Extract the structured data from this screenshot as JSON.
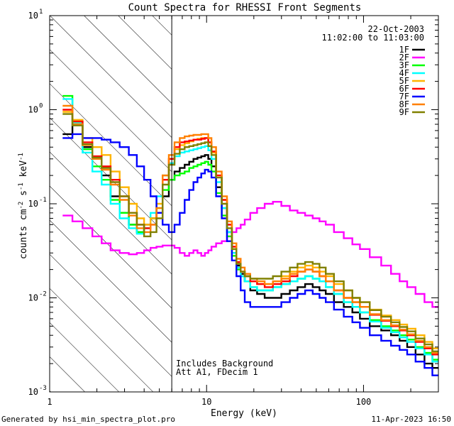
{
  "chart_data": {
    "type": "line",
    "title": "Count Spectra for RHESSI Front Segments",
    "xlabel": "Energy (keV)",
    "ylabel_parts": [
      "counts cm",
      "-2",
      " s",
      "-1",
      " keV",
      "-1"
    ],
    "xscale": "log",
    "yscale": "log",
    "xlim": [
      1,
      300
    ],
    "ylim": [
      0.001,
      10
    ],
    "x_ticks": [
      {
        "value": 1,
        "label": "1"
      },
      {
        "value": 10,
        "label": "10"
      },
      {
        "value": 100,
        "label": "100"
      }
    ],
    "y_ticks": [
      {
        "value": 0.001,
        "base": "10",
        "exp": "-3"
      },
      {
        "value": 0.01,
        "base": "10",
        "exp": "-2"
      },
      {
        "value": 0.1,
        "base": "10",
        "exp": "-1"
      },
      {
        "value": 1,
        "base": "10",
        "exp": "0"
      },
      {
        "value": 10,
        "base": "10",
        "exp": "1"
      }
    ],
    "hatched_region_keV": [
      1,
      6
    ],
    "marker_line_keV": 6,
    "date": "22-Oct-2003",
    "time_range": "11:02:00 to 11:03:00",
    "annotations": [
      "Includes Background",
      "Att A1, FDecim 1"
    ],
    "footer_left": "Generated by hsi_min_spectra_plot.pro",
    "footer_right": "11-Apr-2023 16:50",
    "x": [
      1.3,
      1.5,
      1.75,
      2.0,
      2.3,
      2.6,
      3.0,
      3.4,
      3.8,
      4.2,
      4.6,
      5.0,
      5.5,
      6.0,
      6.5,
      7.0,
      7.5,
      8.0,
      8.5,
      9.0,
      9.5,
      10.0,
      10.5,
      11.0,
      12.0,
      13.0,
      14.0,
      15.0,
      16.0,
      17.0,
      18.0,
      20.0,
      22.0,
      25.0,
      28.0,
      32.0,
      36.0,
      40.0,
      45.0,
      50.0,
      55.0,
      60.0,
      70.0,
      80.0,
      90.0,
      100.0,
      120.0,
      140.0,
      160.0,
      180.0,
      200.0,
      230.0,
      260.0,
      290.0
    ],
    "series": [
      {
        "name": "1F",
        "color": "#000000",
        "values": [
          0.55,
          0.7,
          0.4,
          0.3,
          0.2,
          0.12,
          0.08,
          0.06,
          0.05,
          0.06,
          0.07,
          0.08,
          0.12,
          0.18,
          0.22,
          0.24,
          0.26,
          0.28,
          0.3,
          0.31,
          0.32,
          0.33,
          0.3,
          0.25,
          0.15,
          0.09,
          0.05,
          0.03,
          0.022,
          0.018,
          0.015,
          0.012,
          0.011,
          0.01,
          0.01,
          0.011,
          0.012,
          0.013,
          0.014,
          0.013,
          0.012,
          0.011,
          0.009,
          0.008,
          0.007,
          0.006,
          0.005,
          0.0045,
          0.004,
          0.0035,
          0.003,
          0.0025,
          0.002,
          0.0018
        ]
      },
      {
        "name": "2F",
        "color": "#ff00ff",
        "values": [
          0.075,
          0.065,
          0.055,
          0.045,
          0.038,
          0.032,
          0.03,
          0.029,
          0.03,
          0.032,
          0.034,
          0.035,
          0.036,
          0.036,
          0.034,
          0.03,
          0.028,
          0.03,
          0.032,
          0.03,
          0.028,
          0.03,
          0.032,
          0.035,
          0.038,
          0.04,
          0.045,
          0.05,
          0.055,
          0.06,
          0.068,
          0.08,
          0.09,
          0.1,
          0.105,
          0.095,
          0.085,
          0.08,
          0.075,
          0.07,
          0.065,
          0.06,
          0.05,
          0.043,
          0.037,
          0.033,
          0.027,
          0.022,
          0.018,
          0.015,
          0.013,
          0.011,
          0.009,
          0.008
        ]
      },
      {
        "name": "3F",
        "color": "#00ff00",
        "values": [
          1.4,
          0.75,
          0.38,
          0.25,
          0.18,
          0.11,
          0.08,
          0.06,
          0.05,
          0.055,
          0.07,
          0.09,
          0.14,
          0.18,
          0.2,
          0.21,
          0.22,
          0.24,
          0.25,
          0.26,
          0.27,
          0.28,
          0.26,
          0.22,
          0.13,
          0.075,
          0.045,
          0.028,
          0.02,
          0.017,
          0.015,
          0.013,
          0.012,
          0.012,
          0.013,
          0.014,
          0.015,
          0.016,
          0.017,
          0.016,
          0.015,
          0.013,
          0.011,
          0.009,
          0.008,
          0.007,
          0.0058,
          0.005,
          0.0045,
          0.004,
          0.0036,
          0.003,
          0.0026,
          0.0022
        ]
      },
      {
        "name": "4F",
        "color": "#00ffff",
        "values": [
          1.3,
          0.72,
          0.35,
          0.22,
          0.16,
          0.1,
          0.07,
          0.055,
          0.048,
          0.055,
          0.08,
          0.12,
          0.2,
          0.27,
          0.32,
          0.35,
          0.36,
          0.37,
          0.38,
          0.39,
          0.4,
          0.41,
          0.37,
          0.3,
          0.17,
          0.09,
          0.05,
          0.03,
          0.021,
          0.017,
          0.015,
          0.013,
          0.012,
          0.012,
          0.013,
          0.014,
          0.015,
          0.016,
          0.017,
          0.016,
          0.015,
          0.013,
          0.011,
          0.009,
          0.008,
          0.007,
          0.0056,
          0.0048,
          0.0043,
          0.0038,
          0.0034,
          0.0029,
          0.0025,
          0.0021
        ]
      },
      {
        "name": "5F",
        "color": "#ffb400",
        "values": [
          0.95,
          0.78,
          0.5,
          0.4,
          0.33,
          0.22,
          0.15,
          0.1,
          0.07,
          0.06,
          0.07,
          0.1,
          0.2,
          0.3,
          0.38,
          0.42,
          0.44,
          0.46,
          0.48,
          0.49,
          0.5,
          0.5,
          0.45,
          0.35,
          0.2,
          0.11,
          0.06,
          0.035,
          0.024,
          0.019,
          0.017,
          0.015,
          0.014,
          0.014,
          0.015,
          0.017,
          0.019,
          0.021,
          0.022,
          0.021,
          0.019,
          0.017,
          0.014,
          0.012,
          0.01,
          0.009,
          0.0075,
          0.0065,
          0.0058,
          0.0052,
          0.0047,
          0.004,
          0.0034,
          0.0029
        ]
      },
      {
        "name": "6F",
        "color": "#ff0000",
        "values": [
          1.0,
          0.75,
          0.45,
          0.32,
          0.25,
          0.18,
          0.12,
          0.08,
          0.06,
          0.055,
          0.06,
          0.08,
          0.18,
          0.3,
          0.4,
          0.45,
          0.46,
          0.47,
          0.48,
          0.48,
          0.49,
          0.5,
          0.45,
          0.36,
          0.2,
          0.11,
          0.06,
          0.035,
          0.024,
          0.019,
          0.017,
          0.015,
          0.014,
          0.013,
          0.014,
          0.015,
          0.017,
          0.019,
          0.02,
          0.019,
          0.017,
          0.015,
          0.012,
          0.01,
          0.009,
          0.008,
          0.0066,
          0.0057,
          0.005,
          0.0045,
          0.004,
          0.0034,
          0.0029,
          0.0025
        ]
      },
      {
        "name": "7F",
        "color": "#0000ff",
        "values": [
          0.5,
          0.55,
          0.5,
          0.5,
          0.48,
          0.45,
          0.4,
          0.33,
          0.25,
          0.18,
          0.12,
          0.08,
          0.06,
          0.05,
          0.06,
          0.08,
          0.11,
          0.14,
          0.17,
          0.19,
          0.21,
          0.23,
          0.22,
          0.19,
          0.12,
          0.07,
          0.04,
          0.025,
          0.017,
          0.012,
          0.009,
          0.008,
          0.008,
          0.008,
          0.008,
          0.009,
          0.01,
          0.011,
          0.012,
          0.011,
          0.01,
          0.009,
          0.0075,
          0.0063,
          0.0055,
          0.0048,
          0.004,
          0.0035,
          0.0031,
          0.0028,
          0.0025,
          0.0021,
          0.0018,
          0.0015
        ]
      },
      {
        "name": "8F",
        "color": "#ff8000",
        "values": [
          1.1,
          0.7,
          0.42,
          0.3,
          0.23,
          0.16,
          0.11,
          0.075,
          0.055,
          0.05,
          0.06,
          0.09,
          0.2,
          0.33,
          0.45,
          0.5,
          0.52,
          0.53,
          0.54,
          0.54,
          0.55,
          0.55,
          0.5,
          0.4,
          0.22,
          0.12,
          0.065,
          0.038,
          0.026,
          0.021,
          0.018,
          0.016,
          0.015,
          0.014,
          0.015,
          0.016,
          0.018,
          0.019,
          0.02,
          0.019,
          0.017,
          0.015,
          0.012,
          0.01,
          0.009,
          0.008,
          0.0067,
          0.0058,
          0.0051,
          0.0046,
          0.0041,
          0.0035,
          0.003,
          0.0026
        ]
      },
      {
        "name": "9F",
        "color": "#808000",
        "values": [
          0.9,
          0.68,
          0.43,
          0.31,
          0.24,
          0.17,
          0.12,
          0.08,
          0.06,
          0.045,
          0.05,
          0.07,
          0.16,
          0.26,
          0.34,
          0.38,
          0.4,
          0.41,
          0.42,
          0.43,
          0.44,
          0.45,
          0.41,
          0.33,
          0.19,
          0.1,
          0.055,
          0.033,
          0.023,
          0.019,
          0.017,
          0.016,
          0.016,
          0.016,
          0.017,
          0.019,
          0.021,
          0.023,
          0.024,
          0.023,
          0.021,
          0.018,
          0.015,
          0.012,
          0.01,
          0.009,
          0.0074,
          0.0063,
          0.0055,
          0.0049,
          0.0044,
          0.0037,
          0.0032,
          0.0027
        ]
      }
    ]
  }
}
